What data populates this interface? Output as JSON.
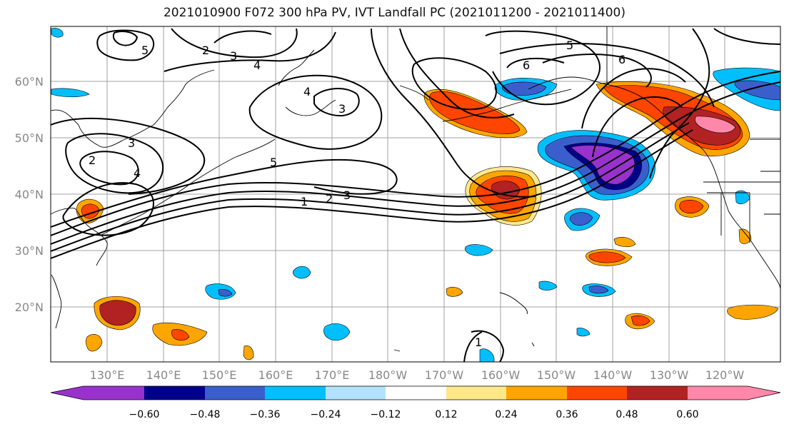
{
  "title": "2021010900 F072 300 hPa PV, IVT Landfall PC (2021011200 - 2021011400)",
  "lat_labels": [
    "60°N",
    "50°N",
    "40°N",
    "30°N",
    "20°N"
  ],
  "lon_labels": [
    "130°E",
    "140°E",
    "150°E",
    "160°E",
    "170°E",
    "180°W",
    "170°W",
    "160°W",
    "150°W",
    "140°W",
    "130°W",
    "120°W"
  ],
  "contour_labels": [
    "1",
    "2",
    "3",
    "4",
    "5",
    "6"
  ],
  "colorbar": {
    "colors": [
      "#9932cc",
      "#00008b",
      "#3a5fcd",
      "#00bfff",
      "#b2e2ff",
      "#ffffff",
      "#ffe88a",
      "#ffa500",
      "#ff4500",
      "#b22222",
      "#ff88aa"
    ],
    "tick_labels": [
      "−0.60",
      "−0.48",
      "−0.36",
      "−0.24",
      "−0.12",
      "0.12",
      "0.24",
      "0.36",
      "0.48",
      "0.60"
    ]
  }
}
